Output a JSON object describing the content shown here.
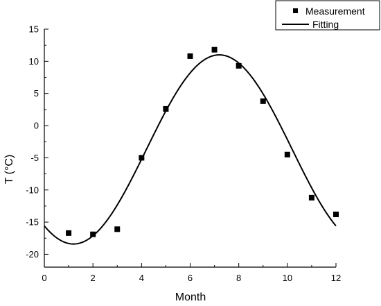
{
  "chart_data": {
    "type": "scatter",
    "xlabel": "Month",
    "ylabel": "T (°C)",
    "xlim": [
      0,
      12
    ],
    "ylim": [
      -22,
      15
    ],
    "x_ticks": [
      "0",
      "2",
      "4",
      "6",
      "8",
      "10",
      "12"
    ],
    "y_ticks": [
      "-20",
      "-15",
      "-10",
      "-5",
      "0",
      "5",
      "10",
      "15"
    ],
    "legend_position": "top-right",
    "series": [
      {
        "name": "Measurement",
        "kind": "scatter",
        "marker": "square",
        "color": "#000000",
        "x": [
          1,
          2,
          3,
          4,
          5,
          6,
          7,
          8,
          9,
          10,
          11,
          12
        ],
        "y": [
          -16.7,
          -16.9,
          -16.1,
          -5.0,
          2.6,
          10.8,
          11.8,
          9.3,
          3.8,
          -4.5,
          -11.2,
          -13.8
        ]
      },
      {
        "name": "Fitting",
        "kind": "line",
        "color": "#000000",
        "model": {
          "mean": -3.7,
          "amplitude": 14.7,
          "peak_month": 7.2,
          "period": 12
        },
        "x_range": [
          0,
          12
        ]
      }
    ],
    "grid": false
  }
}
